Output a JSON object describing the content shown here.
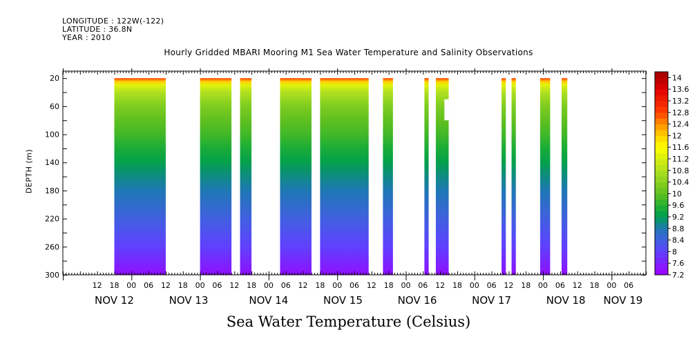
{
  "header": {
    "longitude": "LONGITUDE : 122W(-122)",
    "latitude": "LATITUDE : 36.8N",
    "year": "YEAR : 2010"
  },
  "caption": "Sea Water Temperature (Celsius)",
  "chart_data": {
    "type": "heatmap",
    "title": "Hourly Gridded MBARI Mooring M1 Sea Water Temperature and Salinity Observations",
    "xlabel": "",
    "ylabel": "DEPTH (m)",
    "x_unit": "hours since 2010-11-11 00:00",
    "xlim_hours": [
      0,
      204
    ],
    "ylim": [
      300,
      0
    ],
    "y_ticks": [
      20,
      60,
      100,
      140,
      180,
      220,
      260,
      300
    ],
    "x_hour_ticks": [
      {
        "h": 12,
        "label": "12"
      },
      {
        "h": 18,
        "label": "18"
      },
      {
        "h": 24,
        "label": "00"
      },
      {
        "h": 30,
        "label": "06"
      },
      {
        "h": 36,
        "label": "12"
      },
      {
        "h": 42,
        "label": "18"
      },
      {
        "h": 48,
        "label": "00"
      },
      {
        "h": 54,
        "label": "06"
      },
      {
        "h": 60,
        "label": "12"
      },
      {
        "h": 66,
        "label": "18"
      },
      {
        "h": 72,
        "label": "00"
      },
      {
        "h": 78,
        "label": "06"
      },
      {
        "h": 84,
        "label": "12"
      },
      {
        "h": 90,
        "label": "18"
      },
      {
        "h": 96,
        "label": "00"
      },
      {
        "h": 102,
        "label": "06"
      },
      {
        "h": 108,
        "label": "12"
      },
      {
        "h": 114,
        "label": "18"
      },
      {
        "h": 120,
        "label": "00"
      },
      {
        "h": 126,
        "label": "06"
      },
      {
        "h": 132,
        "label": "12"
      },
      {
        "h": 138,
        "label": "18"
      },
      {
        "h": 144,
        "label": "00"
      },
      {
        "h": 150,
        "label": "06"
      },
      {
        "h": 156,
        "label": "12"
      },
      {
        "h": 162,
        "label": "18"
      },
      {
        "h": 168,
        "label": "00"
      },
      {
        "h": 174,
        "label": "06"
      },
      {
        "h": 180,
        "label": "12"
      },
      {
        "h": 186,
        "label": "18"
      },
      {
        "h": 192,
        "label": "00"
      },
      {
        "h": 198,
        "label": "06"
      }
    ],
    "x_date_labels": [
      {
        "h": 18,
        "label": "NOV 12"
      },
      {
        "h": 44,
        "label": "NOV 13"
      },
      {
        "h": 72,
        "label": "NOV 14"
      },
      {
        "h": 98,
        "label": "NOV 15"
      },
      {
        "h": 124,
        "label": "NOV 16"
      },
      {
        "h": 150,
        "label": "NOV 17"
      },
      {
        "h": 176,
        "label": "NOV 18"
      },
      {
        "h": 196,
        "label": "NOV 19"
      }
    ],
    "data_segments": [
      {
        "start_h": 18,
        "end_h": 36
      },
      {
        "start_h": 48,
        "end_h": 59
      },
      {
        "start_h": 62,
        "end_h": 66
      },
      {
        "start_h": 76,
        "end_h": 87
      },
      {
        "start_h": 90,
        "end_h": 107
      },
      {
        "start_h": 112,
        "end_h": 115.5
      },
      {
        "start_h": 126.5,
        "end_h": 128
      },
      {
        "start_h": 130.5,
        "end_h": 135,
        "gap": {
          "start_h": 133.5,
          "end_h": 135,
          "depth_from": 50,
          "depth_to": 80
        }
      },
      {
        "start_h": 153.5,
        "end_h": 155
      },
      {
        "start_h": 157,
        "end_h": 158.5
      },
      {
        "start_h": 167,
        "end_h": 170.5
      },
      {
        "start_h": 174.5,
        "end_h": 176.5
      }
    ],
    "temperature_profile": [
      {
        "depth": 15,
        "temp": 13.4
      },
      {
        "depth": 20,
        "temp": 12.8
      },
      {
        "depth": 25,
        "temp": 12.0
      },
      {
        "depth": 30,
        "temp": 11.3
      },
      {
        "depth": 40,
        "temp": 10.8
      },
      {
        "depth": 60,
        "temp": 10.3
      },
      {
        "depth": 80,
        "temp": 10.0
      },
      {
        "depth": 100,
        "temp": 9.8
      },
      {
        "depth": 120,
        "temp": 9.5
      },
      {
        "depth": 140,
        "temp": 9.25
      },
      {
        "depth": 160,
        "temp": 9.0
      },
      {
        "depth": 180,
        "temp": 8.8
      },
      {
        "depth": 200,
        "temp": 8.6
      },
      {
        "depth": 220,
        "temp": 8.4
      },
      {
        "depth": 240,
        "temp": 8.2
      },
      {
        "depth": 260,
        "temp": 8.0
      },
      {
        "depth": 280,
        "temp": 7.7
      },
      {
        "depth": 300,
        "temp": 7.4
      }
    ],
    "colorbar": {
      "min": 7.2,
      "max": 14.2,
      "step": 0.2,
      "tick_labels": [
        "14",
        "13.6",
        "13.2",
        "12.8",
        "12.4",
        "12",
        "11.6",
        "11.2",
        "10.8",
        "10.4",
        "10",
        "9.6",
        "9.2",
        "8.8",
        "8.4",
        "8",
        "7.6",
        "7.2"
      ],
      "colors": [
        "#a000ff",
        "#7f20ff",
        "#6040ff",
        "#4060e0",
        "#1e78b4",
        "#009e50",
        "#22b030",
        "#60c020",
        "#b0e020",
        "#ffff00",
        "#ffd000",
        "#ff9000",
        "#ff4000",
        "#e00000",
        "#a00000"
      ],
      "color_stops": [
        7.2,
        7.6,
        8.0,
        8.4,
        8.8,
        9.2,
        9.6,
        10.0,
        10.8,
        11.6,
        12.0,
        12.4,
        12.8,
        13.6,
        14.2
      ]
    }
  }
}
